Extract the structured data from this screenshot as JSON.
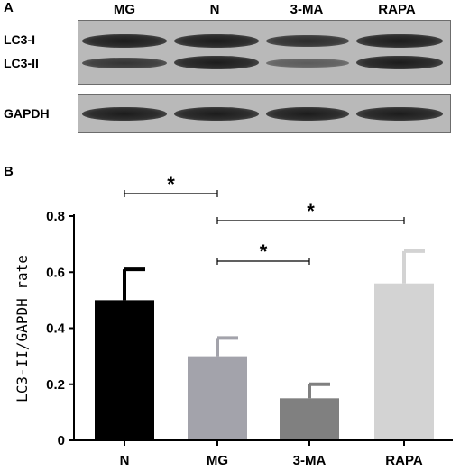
{
  "panel_a": {
    "label": "A",
    "lanes": [
      "MG",
      "N",
      "3-MA",
      "RAPA"
    ],
    "band_labels": {
      "lc3_i": "LC3-I",
      "lc3_ii": "LC3-II",
      "gapdh": "GAPDH"
    }
  },
  "panel_b": {
    "label": "B"
  },
  "chart_data": {
    "type": "bar",
    "categories": [
      "N",
      "MG",
      "3-MA",
      "RAPA"
    ],
    "values": [
      0.5,
      0.3,
      0.15,
      0.56
    ],
    "errors": [
      0.11,
      0.065,
      0.05,
      0.115
    ],
    "colors": [
      "#000000",
      "#a3a3ab",
      "#808080",
      "#d3d3d3"
    ],
    "ylabel": "LC3-II/GAPDH rate",
    "xlabel": "",
    "title": "",
    "ylim": [
      0,
      0.8
    ],
    "yticks": [
      "0",
      "0.2",
      "0.4",
      "0.6",
      "0.8"
    ],
    "significance": [
      {
        "from": "N",
        "to": "MG",
        "label": "*"
      },
      {
        "from": "MG",
        "to": "RAPA",
        "label": "*"
      },
      {
        "from": "MG",
        "to": "3-MA",
        "label": "*"
      }
    ]
  }
}
